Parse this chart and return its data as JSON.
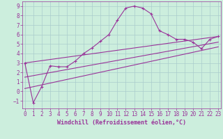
{
  "xlabel": "Windchill (Refroidissement éolien,°C)",
  "bg_color": "#cceedd",
  "grid_color": "#aacccc",
  "line_color": "#993399",
  "spine_color": "#993399",
  "tick_color": "#993399",
  "label_color": "#993399",
  "x_ticks": [
    0,
    1,
    2,
    3,
    4,
    5,
    6,
    7,
    8,
    9,
    10,
    11,
    12,
    13,
    14,
    15,
    16,
    17,
    18,
    19,
    20,
    21,
    22,
    23
  ],
  "ylim": [
    -1.8,
    9.5
  ],
  "xlim": [
    -0.3,
    23.3
  ],
  "yticks": [
    -1,
    0,
    1,
    2,
    3,
    4,
    5,
    6,
    7,
    8,
    9
  ],
  "series": [
    {
      "x": [
        0,
        1,
        2,
        3,
        4,
        5,
        6,
        7,
        8,
        9,
        10,
        11,
        12,
        13,
        14,
        15,
        16,
        17,
        18,
        19,
        20,
        21,
        22,
        23
      ],
      "y": [
        3.0,
        -1.2,
        0.5,
        2.7,
        2.6,
        2.6,
        3.2,
        4.0,
        4.6,
        5.3,
        6.0,
        7.5,
        8.8,
        9.0,
        8.8,
        8.2,
        6.4,
        6.0,
        5.5,
        5.5,
        5.2,
        4.5,
        5.5,
        5.8
      ],
      "marker": "+"
    },
    {
      "x": [
        0,
        23
      ],
      "y": [
        3.0,
        5.8
      ],
      "marker": null
    },
    {
      "x": [
        0,
        23
      ],
      "y": [
        1.5,
        5.2
      ],
      "marker": null
    },
    {
      "x": [
        0,
        23
      ],
      "y": [
        0.3,
        4.7
      ],
      "marker": null
    }
  ],
  "tick_fontsize": 5.5,
  "xlabel_fontsize": 6.0
}
